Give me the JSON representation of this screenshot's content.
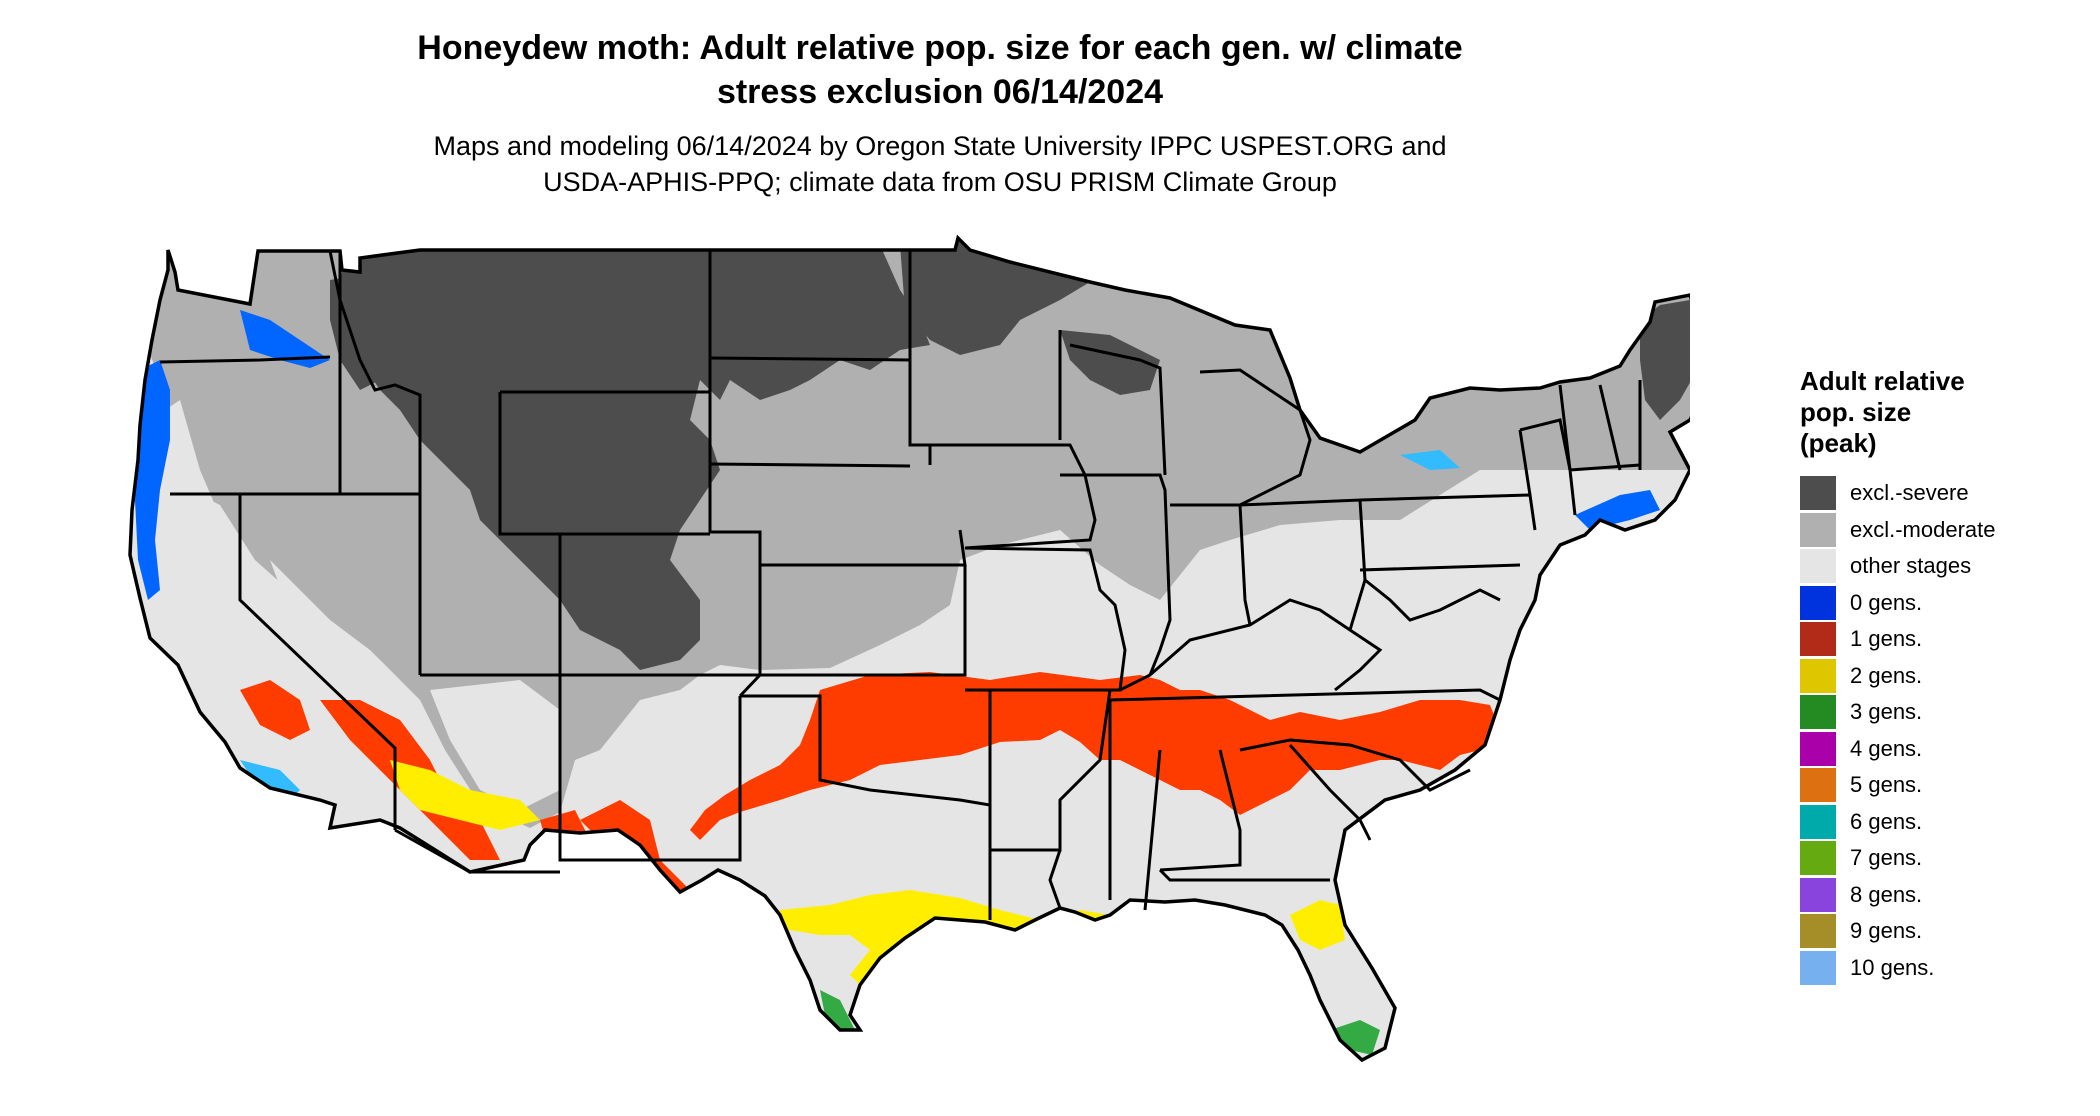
{
  "title": {
    "line1": "Honeydew moth: Adult relative pop. size for each gen. w/ climate",
    "line2": "stress exclusion 06/14/2024"
  },
  "subtitle": {
    "line1": "Maps and modeling 06/14/2024 by Oregon State University IPPC USPEST.ORG and",
    "line2": "USDA-APHIS-PPQ; climate data from OSU PRISM Climate Group"
  },
  "legend": {
    "title_lines": [
      "Adult relative",
      "pop. size",
      "(peak)"
    ],
    "items": [
      {
        "label": "excl.-severe",
        "color": "#4d4d4d"
      },
      {
        "label": "excl.-moderate",
        "color": "#b0b0b0"
      },
      {
        "label": "other stages",
        "color": "#e5e5e5"
      },
      {
        "label": "0 gens.",
        "color": "#0033dd"
      },
      {
        "label": "1 gens.",
        "color": "#b22a18"
      },
      {
        "label": "2 gens.",
        "color": "#dfc700"
      },
      {
        "label": "3 gens.",
        "color": "#238b22"
      },
      {
        "label": "4 gens.",
        "color": "#aa00aa"
      },
      {
        "label": "5 gens.",
        "color": "#dd7011"
      },
      {
        "label": "6 gens.",
        "color": "#00aaaa"
      },
      {
        "label": "7 gens.",
        "color": "#66aa11"
      },
      {
        "label": "8 gens.",
        "color": "#8844dd"
      },
      {
        "label": "9 gens.",
        "color": "#a58e28"
      },
      {
        "label": "10 gens.",
        "color": "#77b0ee"
      }
    ]
  },
  "map_colors": {
    "severe": "#4d4d4d",
    "moderate": "#b0b0b0",
    "other": "#e5e5e5",
    "zero_gens": "#0066ff",
    "zero_gens_light": "#33bbff",
    "one_gen": "#ff3c00",
    "two_gens": "#ffee00",
    "three_gens": "#33aa44",
    "outline": "#000000"
  }
}
